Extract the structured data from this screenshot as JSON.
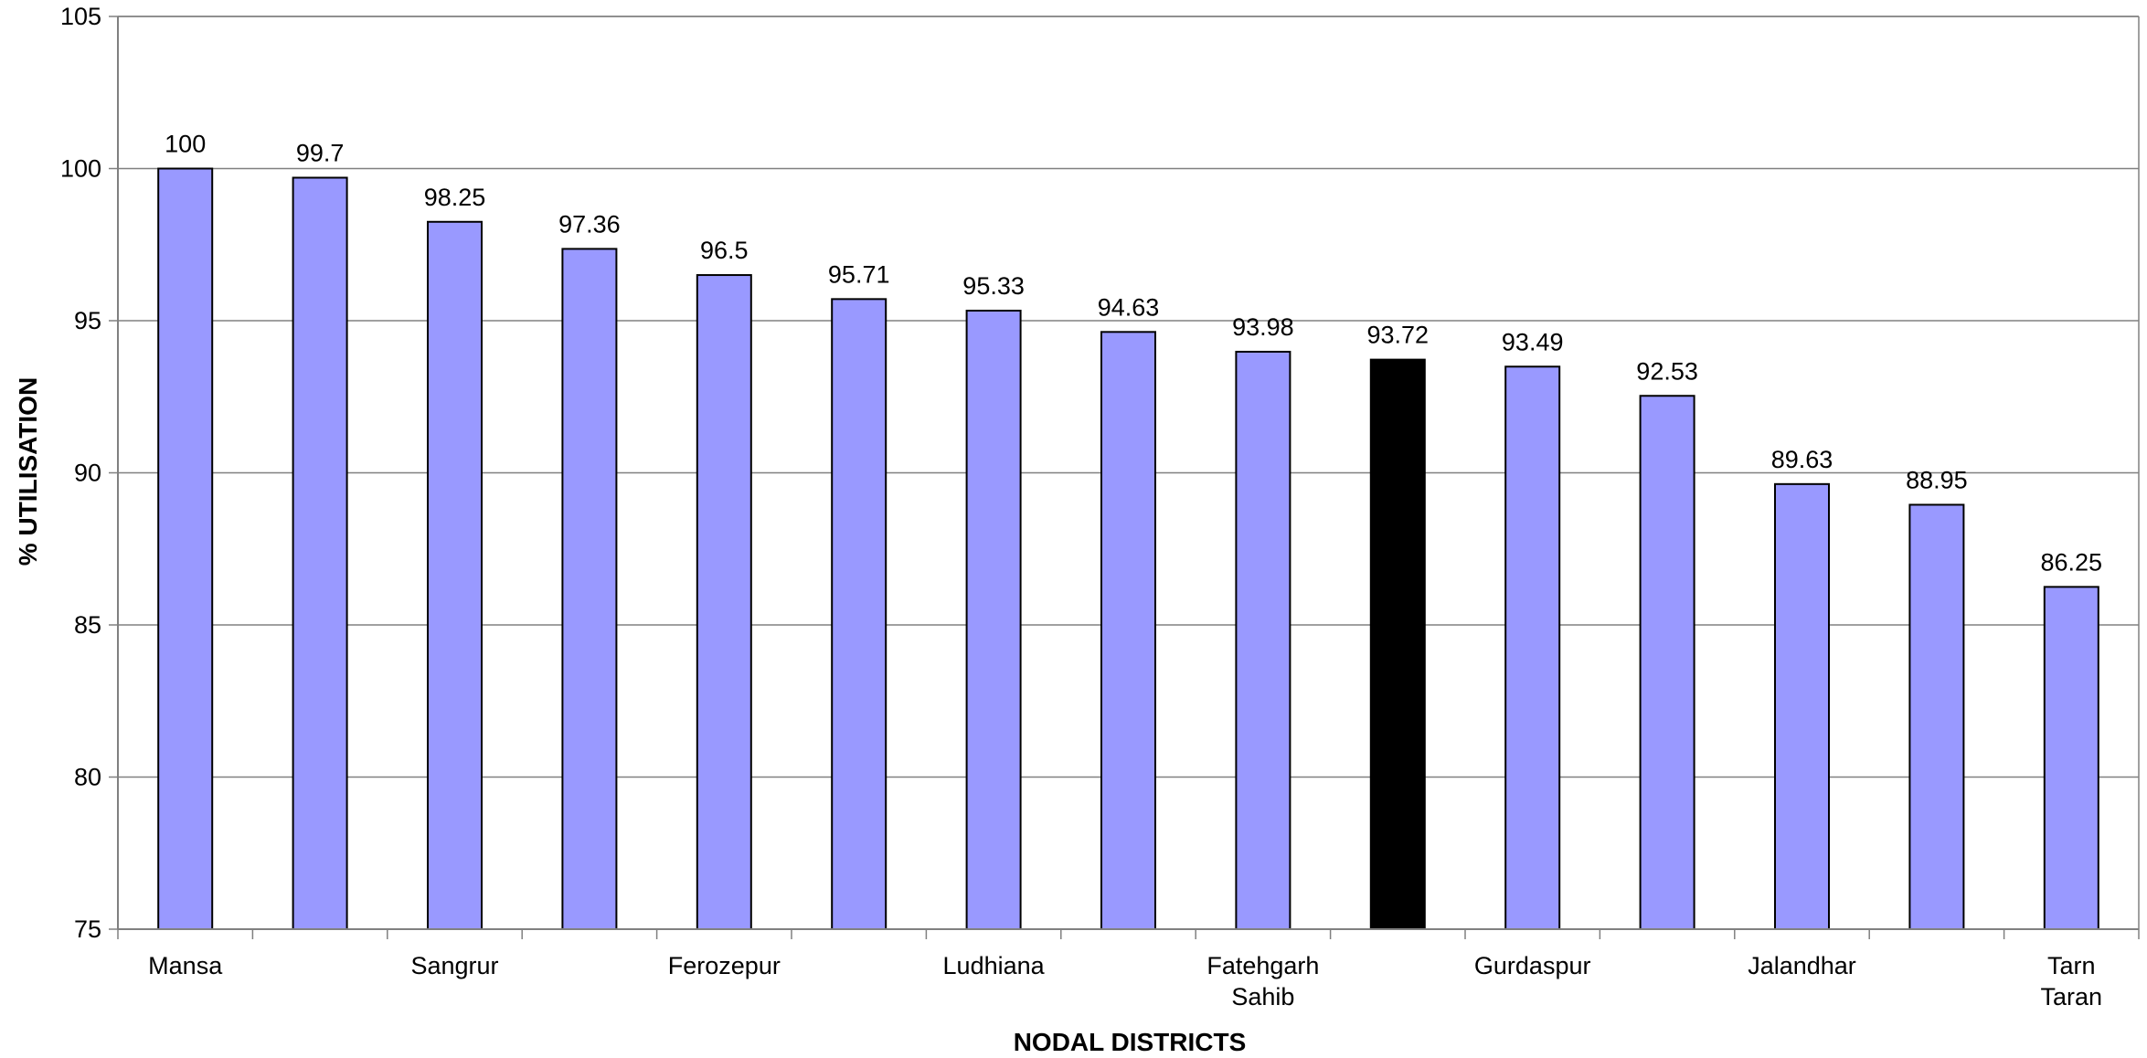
{
  "chart_data": {
    "type": "bar",
    "xlabel": "NODAL DISTRICTS",
    "ylabel": "% UTILISATION",
    "ylim": [
      75,
      105
    ],
    "yticks": [
      75,
      80,
      85,
      90,
      95,
      100,
      105
    ],
    "grid": true,
    "categories": [
      "Mansa",
      "",
      "Sangrur",
      "",
      "Ferozepur",
      "",
      "Ludhiana",
      "",
      "Fatehgarh Sahib",
      "",
      "Gurdaspur",
      "",
      "Jalandhar",
      "",
      "Tarn Taran"
    ],
    "values": [
      100,
      99.7,
      98.25,
      97.36,
      96.5,
      95.71,
      95.33,
      94.63,
      93.98,
      93.72,
      93.49,
      92.53,
      89.63,
      88.95,
      86.25
    ],
    "data_labels": [
      "100",
      "99.7",
      "98.25",
      "97.36",
      "96.5",
      "95.71",
      "95.33",
      "94.63",
      "93.98",
      "93.72",
      "93.49",
      "92.53",
      "89.63",
      "88.95",
      "86.25"
    ],
    "highlight_index": 9,
    "colors": {
      "bar": "#9999ff",
      "highlight": "#000000",
      "bar_stroke": "#000000",
      "grid": "#808080",
      "axis": "#808080"
    }
  }
}
